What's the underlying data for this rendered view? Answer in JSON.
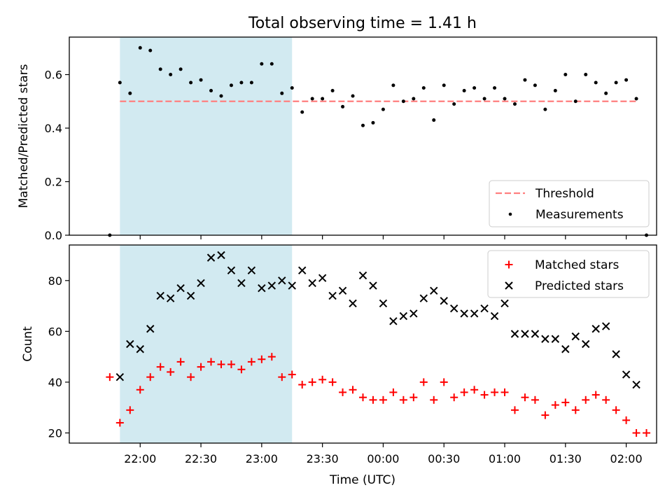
{
  "figure": {
    "title": "Total observing time = 1.41 h"
  },
  "colors": {
    "shade": "#add8e6",
    "threshold": "#ff7f7f",
    "measurement": "#000000",
    "matched": "#ff0000",
    "predicted": "#000000"
  },
  "chart_data": [
    {
      "type": "scatter",
      "ylabel": "Matched/Predicted stars",
      "xlim": [
        "21:25",
        "02:15"
      ],
      "ylim": [
        0,
        0.74
      ],
      "yticks": [
        "0.0",
        "0.2",
        "0.4",
        "0.6"
      ],
      "shaded_interval": [
        "21:50",
        "23:15"
      ],
      "legend_position": "lower right",
      "legend": [
        "Threshold",
        "Measurements"
      ],
      "threshold": {
        "name": "Threshold",
        "y": 0.5,
        "x": [
          "21:50",
          "02:05"
        ]
      },
      "measurements": {
        "name": "Measurements",
        "x": [
          "21:45",
          "21:50",
          "21:55",
          "22:00",
          "22:05",
          "22:10",
          "22:15",
          "22:20",
          "22:25",
          "22:30",
          "22:35",
          "22:40",
          "22:45",
          "22:50",
          "22:55",
          "23:00",
          "23:05",
          "23:10",
          "23:15",
          "23:20",
          "23:25",
          "23:30",
          "23:35",
          "23:40",
          "23:45",
          "23:50",
          "23:55",
          "00:00",
          "00:05",
          "00:10",
          "00:15",
          "00:20",
          "00:25",
          "00:30",
          "00:35",
          "00:40",
          "00:45",
          "00:50",
          "00:55",
          "01:00",
          "01:05",
          "01:10",
          "01:15",
          "01:20",
          "01:25",
          "01:30",
          "01:35",
          "01:40",
          "01:45",
          "01:50",
          "01:55",
          "02:00",
          "02:05"
        ],
        "y": [
          0.0,
          0.57,
          0.53,
          0.7,
          0.69,
          0.62,
          0.6,
          0.62,
          0.57,
          0.58,
          0.54,
          0.52,
          0.56,
          0.57,
          0.57,
          0.64,
          0.64,
          0.53,
          0.55,
          0.46,
          0.51,
          0.51,
          0.54,
          0.48,
          0.52,
          0.41,
          0.42,
          0.47,
          0.56,
          0.5,
          0.51,
          0.55,
          0.43,
          0.56,
          0.49,
          0.54,
          0.55,
          0.51,
          0.55,
          0.51,
          0.49,
          0.58,
          0.56,
          0.47,
          0.54,
          0.6,
          0.5,
          0.6,
          0.57,
          0.53,
          0.57,
          0.58,
          0.51
        ]
      },
      "trailing_point": {
        "x": "02:10",
        "y": 0.0
      }
    },
    {
      "type": "scatter",
      "xlabel": "Time (UTC)",
      "ylabel": "Count",
      "xlim": [
        "21:25",
        "02:15"
      ],
      "ylim": [
        16,
        94
      ],
      "yticks": [
        "20",
        "40",
        "60",
        "80"
      ],
      "xticks": [
        "22:00",
        "22:30",
        "23:00",
        "23:30",
        "00:00",
        "00:30",
        "01:00",
        "01:30",
        "02:00"
      ],
      "shaded_interval": [
        "21:50",
        "23:15"
      ],
      "legend_position": "upper right",
      "legend": [
        "Matched stars",
        "Predicted stars"
      ],
      "x": [
        "21:45",
        "21:50",
        "21:55",
        "22:00",
        "22:05",
        "22:10",
        "22:15",
        "22:20",
        "22:25",
        "22:30",
        "22:35",
        "22:40",
        "22:45",
        "22:50",
        "22:55",
        "23:00",
        "23:05",
        "23:10",
        "23:15",
        "23:20",
        "23:25",
        "23:30",
        "23:35",
        "23:40",
        "23:45",
        "23:50",
        "23:55",
        "00:00",
        "00:05",
        "00:10",
        "00:15",
        "00:20",
        "00:25",
        "00:30",
        "00:35",
        "00:40",
        "00:45",
        "00:50",
        "00:55",
        "01:00",
        "01:05",
        "01:10",
        "01:15",
        "01:20",
        "01:25",
        "01:30",
        "01:35",
        "01:40",
        "01:45",
        "01:50",
        "01:55",
        "02:00",
        "02:05",
        "02:10"
      ],
      "series": [
        {
          "name": "Matched stars",
          "marker": "plus",
          "values": [
            42,
            24,
            29,
            37,
            42,
            46,
            44,
            48,
            42,
            46,
            48,
            47,
            47,
            45,
            48,
            49,
            50,
            42,
            43,
            39,
            40,
            41,
            40,
            36,
            37,
            34,
            33,
            33,
            36,
            33,
            34,
            40,
            33,
            40,
            34,
            36,
            37,
            35,
            36,
            36,
            29,
            34,
            33,
            27,
            31,
            32,
            29,
            33,
            35,
            33,
            29,
            25,
            20,
            20
          ]
        },
        {
          "name": "Predicted stars",
          "marker": "x",
          "values": [
            null,
            42,
            55,
            53,
            61,
            74,
            73,
            77,
            74,
            79,
            89,
            90,
            84,
            79,
            84,
            77,
            78,
            80,
            78,
            84,
            79,
            81,
            74,
            76,
            71,
            82,
            78,
            71,
            64,
            66,
            67,
            73,
            76,
            72,
            69,
            67,
            67,
            69,
            66,
            71,
            59,
            59,
            59,
            57,
            57,
            53,
            58,
            55,
            61,
            62,
            51,
            43,
            39,
            null
          ]
        }
      ]
    }
  ]
}
